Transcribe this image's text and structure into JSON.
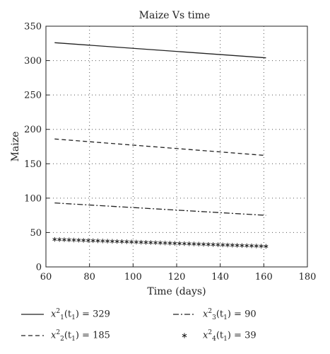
{
  "chart_data": {
    "type": "line",
    "title": "Maize Vs time",
    "xlabel": "Time (days)",
    "ylabel": "Maize",
    "xlim": [
      60,
      180
    ],
    "ylim": [
      0,
      350
    ],
    "xticks": [
      60,
      80,
      100,
      120,
      140,
      160,
      180
    ],
    "yticks": [
      0,
      50,
      100,
      150,
      200,
      250,
      300,
      350
    ],
    "grid": true,
    "legend_position": "bottom",
    "series": [
      {
        "name": "x₁²(t₁) = 329",
        "style": "solid",
        "x": [
          64,
          161
        ],
        "y": [
          326,
          304
        ]
      },
      {
        "name": "x₂²(t₁) = 185",
        "style": "dashed",
        "x": [
          64,
          161
        ],
        "y": [
          186,
          162
        ]
      },
      {
        "name": "x₃²(t₁) = 90",
        "style": "dashdot",
        "x": [
          64,
          161
        ],
        "y": [
          93,
          75
        ]
      },
      {
        "name": "x₄²(t₁) = 39",
        "style": "star-markers",
        "x": [
          64,
          161
        ],
        "y": [
          40,
          30
        ]
      }
    ]
  },
  "legend": [
    {
      "var": "x",
      "sup": "2",
      "sub": "1",
      "arg": "(t",
      "argsub": "1",
      "rest": ") = 329",
      "style": "solid"
    },
    {
      "var": "x",
      "sup": "2",
      "sub": "3",
      "arg": "(t",
      "argsub": "1",
      "rest": ") = 90",
      "style": "dashdot"
    },
    {
      "var": "x",
      "sup": "2",
      "sub": "2",
      "arg": "(t",
      "argsub": "1",
      "rest": ") = 185",
      "style": "dashed"
    },
    {
      "var": "x",
      "sup": "2",
      "sub": "4",
      "arg": "(t",
      "argsub": "1",
      "rest": ") = 39",
      "style": "star-markers"
    }
  ]
}
